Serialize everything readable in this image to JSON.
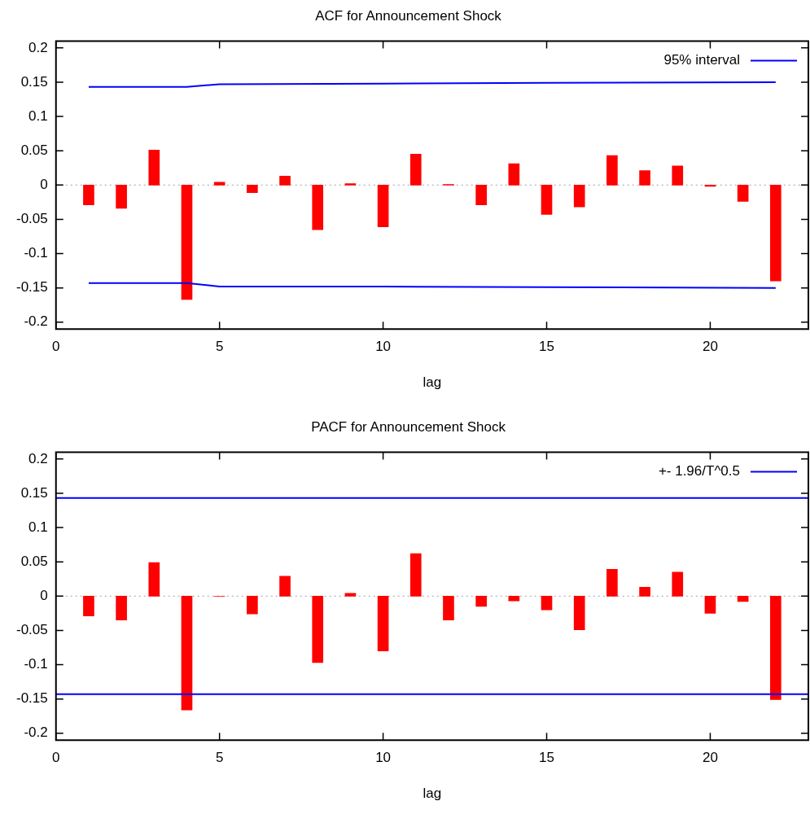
{
  "chart_data": [
    {
      "type": "bar",
      "title": "ACF for Announcement Shock",
      "xlabel": "lag",
      "x": [
        1,
        2,
        3,
        4,
        5,
        6,
        7,
        8,
        9,
        10,
        11,
        12,
        13,
        14,
        15,
        16,
        17,
        18,
        19,
        20,
        21,
        22
      ],
      "xlim": [
        0,
        23
      ],
      "xticks": [
        0,
        5,
        10,
        15,
        20
      ],
      "ylim": [
        -0.21,
        0.21
      ],
      "yticks": [
        -0.2,
        -0.15,
        -0.1,
        -0.05,
        0,
        0.05,
        0.1,
        0.15,
        0.2
      ],
      "grid": false,
      "legend": "top right",
      "series": [
        {
          "color": "#ff0000",
          "values": [
            -0.029,
            -0.034,
            0.051,
            -0.167,
            0.004,
            -0.011,
            0.013,
            -0.065,
            0.002,
            -0.061,
            0.045,
            0.001,
            -0.029,
            0.031,
            -0.043,
            -0.032,
            0.043,
            0.021,
            0.028,
            -0.002,
            -0.024,
            -0.14
          ]
        },
        {
          "type": "line",
          "name": "95% interval",
          "color": "#0000ff",
          "x": [
            1,
            4,
            5,
            10,
            15,
            22
          ],
          "values": [
            0.143,
            0.143,
            0.147,
            0.148,
            0.149,
            0.15
          ]
        },
        {
          "type": "line",
          "color": "#0000ff",
          "x": [
            1,
            4,
            5,
            10,
            15,
            22
          ],
          "values": [
            -0.143,
            -0.143,
            -0.148,
            -0.148,
            -0.149,
            -0.15
          ]
        }
      ],
      "ref_lines": [
        {
          "axis": "y",
          "value": 0,
          "color": "#a0a0a0",
          "line_style": "dotted"
        }
      ]
    },
    {
      "type": "bar",
      "title": "PACF for Announcement Shock",
      "xlabel": "lag",
      "x": [
        1,
        2,
        3,
        4,
        5,
        6,
        7,
        8,
        9,
        10,
        11,
        12,
        13,
        14,
        15,
        16,
        17,
        18,
        19,
        20,
        21,
        22
      ],
      "xlim": [
        0,
        23
      ],
      "xticks": [
        0,
        5,
        10,
        15,
        20
      ],
      "ylim": [
        -0.21,
        0.21
      ],
      "yticks": [
        -0.2,
        -0.15,
        -0.1,
        -0.05,
        0,
        0.05,
        0.1,
        0.15,
        0.2
      ],
      "grid": false,
      "legend": "top right",
      "series": [
        {
          "color": "#ff0000",
          "values": [
            -0.029,
            -0.035,
            0.049,
            -0.166,
            0,
            -0.026,
            0.029,
            -0.097,
            0.004,
            -0.08,
            0.062,
            -0.035,
            -0.015,
            -0.007,
            -0.02,
            -0.049,
            0.039,
            0.013,
            0.035,
            -0.025,
            -0.008,
            -0.151
          ]
        },
        {
          "type": "line",
          "name": "+- 1.96/T^0.5",
          "color": "#0000ff",
          "x": [
            0,
            23
          ],
          "values": [
            0.143,
            0.143
          ]
        },
        {
          "type": "line",
          "color": "#0000ff",
          "x": [
            0,
            23
          ],
          "values": [
            -0.143,
            -0.143
          ]
        }
      ],
      "ref_lines": [
        {
          "axis": "y",
          "value": 0,
          "color": "#a0a0a0",
          "line_style": "dotted"
        }
      ]
    }
  ]
}
